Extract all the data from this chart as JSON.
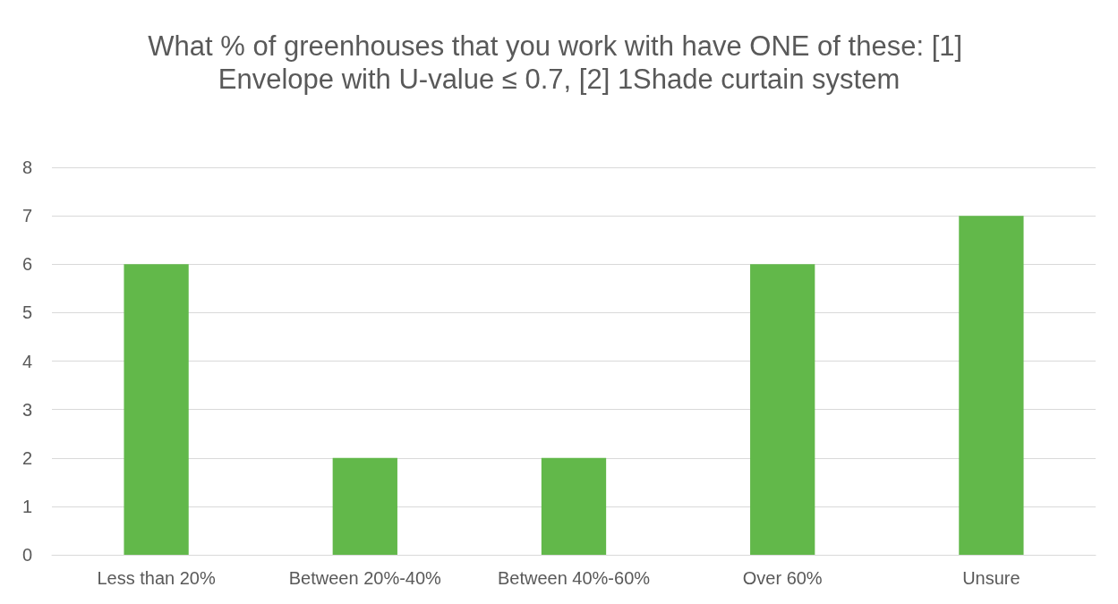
{
  "chart_data": {
    "type": "bar",
    "title": "What % of greenhouses that you work with have ONE of these: [1] Envelope with U-value ≤ 0.7, [2] 1Shade curtain system",
    "categories": [
      "Less than 20%",
      "Between 20%-40%",
      "Between 40%-60%",
      "Over 60%",
      "Unsure"
    ],
    "values": [
      6,
      2,
      2,
      6,
      7
    ],
    "color": "#62b84a",
    "ylim": [
      0,
      8
    ],
    "yticks": [
      0,
      1,
      2,
      3,
      4,
      5,
      6,
      7,
      8
    ],
    "grid": "y"
  }
}
